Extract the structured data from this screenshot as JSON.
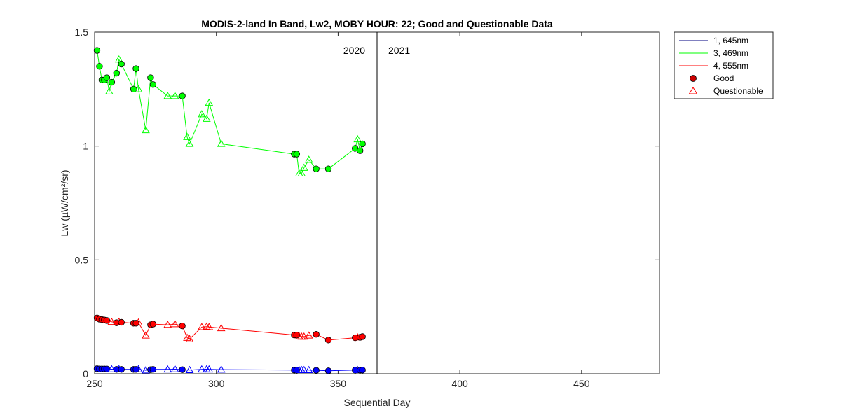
{
  "chart_data": {
    "type": "line",
    "title": "MODIS-2-land In Band,  Lw2, MOBY HOUR: 22;  Good and Questionable Data",
    "xlabel": "Sequential Day",
    "ylabel": "Lw (µW/cm²/sr)",
    "xlim": [
      250,
      482
    ],
    "ylim": [
      0,
      1.5
    ],
    "xticks": [
      250,
      300,
      350,
      400,
      450
    ],
    "yticks": [
      0,
      0.5,
      1,
      1.5
    ],
    "ytick_labels": [
      "0",
      "0.5",
      "1",
      "1.5"
    ],
    "grid": false,
    "legend_position": "outside-top-right",
    "divider_x": 366,
    "year_labels": [
      "2020",
      "2021"
    ],
    "legend": {
      "series": [
        "1, 645nm",
        "3, 469nm",
        "4, 555nm"
      ],
      "markers": [
        "Good",
        "Questionable"
      ]
    },
    "series": [
      {
        "name": "1, 645nm",
        "color": "#0000ff",
        "x": [
          251,
          252,
          253,
          254,
          255,
          257,
          259,
          260,
          261,
          266,
          267,
          268,
          271,
          273,
          274,
          280,
          283,
          286,
          289,
          294,
          296,
          297,
          302,
          332,
          333,
          334,
          335,
          336,
          338,
          341,
          346,
          357,
          358,
          359,
          360
        ],
        "y": [
          0.022,
          0.021,
          0.021,
          0.021,
          0.021,
          0.02,
          0.019,
          0.02,
          0.019,
          0.019,
          0.019,
          0.02,
          0.015,
          0.018,
          0.019,
          0.019,
          0.02,
          0.018,
          0.016,
          0.019,
          0.02,
          0.019,
          0.018,
          0.016,
          0.016,
          0.016,
          0.016,
          0.016,
          0.016,
          0.015,
          0.013,
          0.016,
          0.016,
          0.016,
          0.016
        ],
        "quality": [
          "G",
          "G",
          "G",
          "G",
          "G",
          "Q",
          "G",
          "Q",
          "G",
          "G",
          "G",
          "Q",
          "Q",
          "G",
          "G",
          "Q",
          "Q",
          "G",
          "Q",
          "Q",
          "Q",
          "Q",
          "Q",
          "G",
          "G",
          "Q",
          "Q",
          "Q",
          "Q",
          "G",
          "G",
          "G",
          "Q",
          "G",
          "G"
        ]
      },
      {
        "name": "3, 469nm",
        "color": "#00ff00",
        "x": [
          251,
          252,
          253,
          254,
          255,
          256,
          257,
          259,
          260,
          261,
          266,
          267,
          268,
          271,
          273,
          274,
          280,
          283,
          286,
          288,
          289,
          294,
          296,
          297,
          302,
          332,
          333,
          334,
          335,
          336,
          338,
          341,
          346,
          357,
          358,
          359,
          360
        ],
        "y": [
          1.42,
          1.35,
          1.29,
          1.29,
          1.3,
          1.24,
          1.28,
          1.32,
          1.38,
          1.36,
          1.25,
          1.34,
          1.25,
          1.07,
          1.3,
          1.27,
          1.22,
          1.22,
          1.22,
          1.04,
          1.01,
          1.14,
          1.12,
          1.19,
          1.01,
          0.965,
          0.965,
          0.88,
          0.88,
          0.905,
          0.94,
          0.9,
          0.9,
          0.99,
          1.03,
          0.98,
          1.01
        ],
        "quality": [
          "G",
          "G",
          "G",
          "G",
          "G",
          "Q",
          "G",
          "G",
          "Q",
          "G",
          "G",
          "G",
          "Q",
          "Q",
          "G",
          "G",
          "Q",
          "Q",
          "G",
          "Q",
          "Q",
          "Q",
          "Q",
          "Q",
          "Q",
          "G",
          "G",
          "Q",
          "Q",
          "Q",
          "Q",
          "G",
          "G",
          "G",
          "Q",
          "G",
          "G"
        ]
      },
      {
        "name": "4, 555nm",
        "color": "#ff0000",
        "x": [
          251,
          252,
          253,
          254,
          255,
          257,
          259,
          260,
          261,
          266,
          267,
          268,
          271,
          273,
          274,
          280,
          283,
          286,
          288,
          289,
          294,
          296,
          297,
          302,
          332,
          333,
          334,
          335,
          336,
          338,
          341,
          346,
          357,
          358,
          359,
          360
        ],
        "y": [
          0.245,
          0.24,
          0.238,
          0.236,
          0.234,
          0.228,
          0.224,
          0.228,
          0.226,
          0.222,
          0.222,
          0.225,
          0.168,
          0.215,
          0.218,
          0.215,
          0.218,
          0.21,
          0.158,
          0.152,
          0.205,
          0.207,
          0.205,
          0.2,
          0.17,
          0.17,
          0.165,
          0.163,
          0.163,
          0.168,
          0.173,
          0.148,
          0.158,
          0.16,
          0.16,
          0.163
        ],
        "quality": [
          "G",
          "G",
          "G",
          "G",
          "G",
          "Q",
          "G",
          "Q",
          "G",
          "G",
          "G",
          "Q",
          "Q",
          "G",
          "G",
          "Q",
          "Q",
          "G",
          "Q",
          "Q",
          "Q",
          "Q",
          "Q",
          "Q",
          "G",
          "G",
          "Q",
          "Q",
          "Q",
          "Q",
          "G",
          "G",
          "G",
          "Q",
          "G",
          "G"
        ]
      }
    ]
  }
}
